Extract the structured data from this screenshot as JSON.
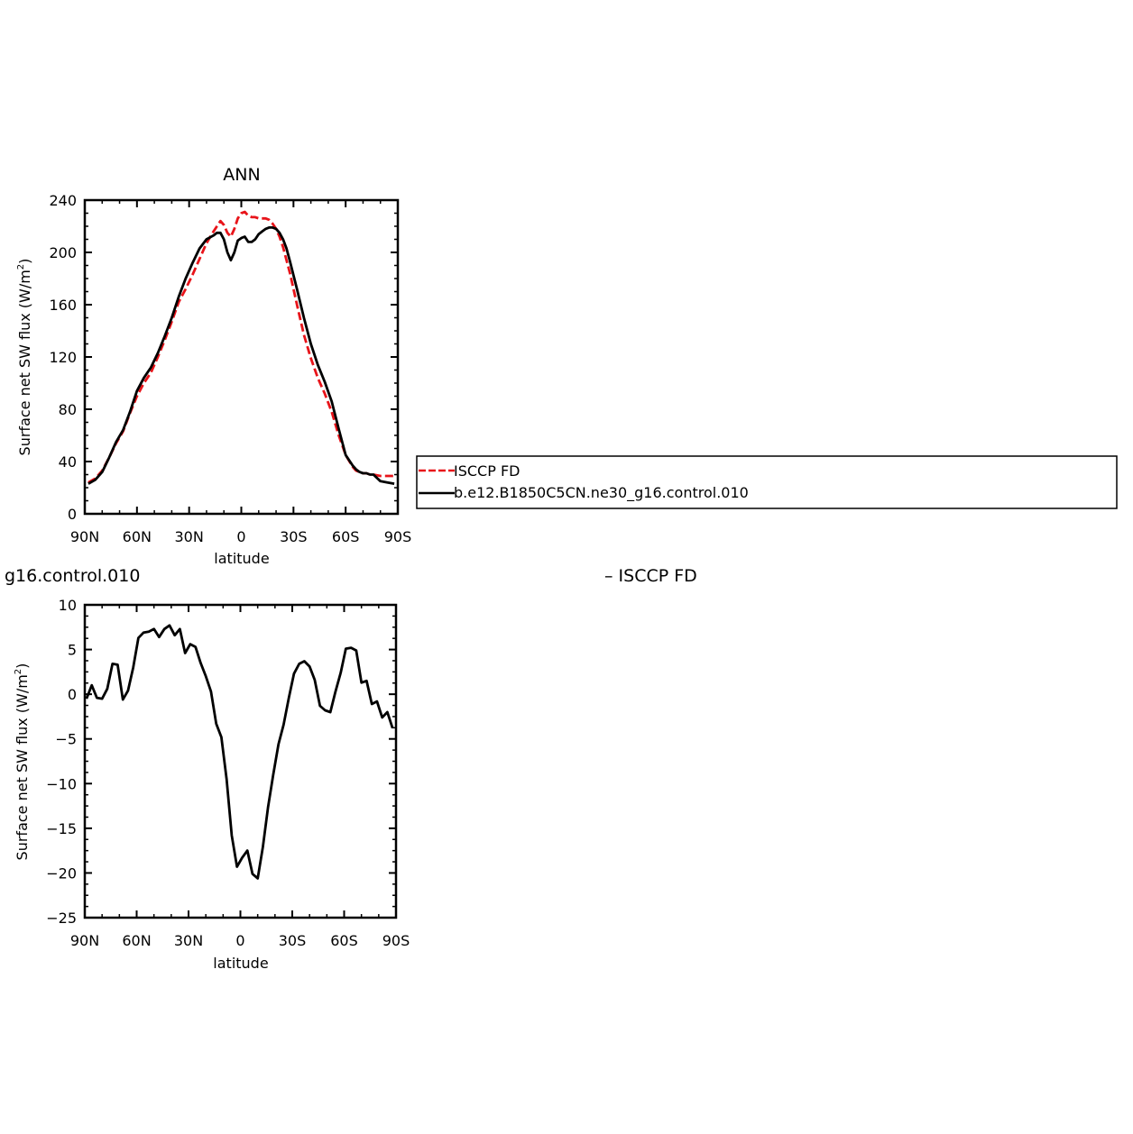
{
  "chart_data": [
    {
      "type": "line",
      "title": "ANN",
      "xlabel": "latitude",
      "ylabel": "Surface net SW flux (W/m",
      "ylabel_sup": "2",
      "ylabel_end": ")",
      "xlim": [
        -90,
        90
      ],
      "ylim": [
        0,
        240
      ],
      "xticks": [
        -90,
        -60,
        -30,
        0,
        30,
        60,
        90
      ],
      "xtick_labels": [
        "90N",
        "60N",
        "30N",
        "0",
        "30S",
        "60S",
        "90S"
      ],
      "yticks": [
        0,
        40,
        80,
        120,
        160,
        200,
        240
      ],
      "ytick_labels": [
        "0",
        "40",
        "80",
        "120",
        "160",
        "200",
        "240"
      ],
      "grid": false,
      "legend_position": "right",
      "series": [
        {
          "name": "ISCCP FD",
          "color": "#e8141a",
          "style": "dashed",
          "x": [
            -88,
            -84,
            -80,
            -76,
            -72,
            -68,
            -64,
            -60,
            -56,
            -52,
            -48,
            -44,
            -40,
            -36,
            -32,
            -28,
            -24,
            -20,
            -16,
            -14,
            -12,
            -10,
            -8,
            -6,
            -4,
            -2,
            0,
            2,
            4,
            6,
            8,
            10,
            12,
            14,
            16,
            18,
            20,
            22,
            24,
            26,
            28,
            32,
            36,
            40,
            44,
            48,
            52,
            56,
            60,
            64,
            66,
            68,
            70,
            72,
            74,
            76,
            80,
            84,
            88
          ],
          "y": [
            24,
            27,
            33,
            43,
            54,
            63,
            77,
            90,
            100,
            108,
            120,
            133,
            147,
            162,
            172,
            183,
            195,
            207,
            216,
            220,
            224,
            221,
            215,
            212,
            218,
            226,
            230,
            231,
            228,
            227,
            227,
            226,
            226,
            226,
            225,
            222,
            218,
            212,
            204,
            194,
            184,
            160,
            137,
            119,
            104,
            92,
            78,
            60,
            45,
            36,
            33,
            32,
            31,
            31,
            30,
            30,
            29,
            29,
            29
          ]
        },
        {
          "name": "b.e12.B1850C5CN.ne30_g16.control.010",
          "color": "#000000",
          "style": "solid",
          "x": [
            -88,
            -84,
            -80,
            -76,
            -72,
            -68,
            -64,
            -60,
            -56,
            -52,
            -48,
            -44,
            -40,
            -36,
            -32,
            -28,
            -24,
            -20,
            -16,
            -14,
            -12,
            -10,
            -8,
            -6,
            -4,
            -2,
            0,
            2,
            4,
            6,
            8,
            10,
            12,
            14,
            16,
            18,
            20,
            22,
            24,
            26,
            28,
            32,
            36,
            40,
            44,
            48,
            52,
            56,
            60,
            64,
            66,
            68,
            70,
            72,
            74,
            76,
            80,
            84,
            88
          ],
          "y": [
            23,
            26,
            32,
            43,
            55,
            64,
            78,
            94,
            104,
            112,
            123,
            136,
            150,
            166,
            180,
            192,
            203,
            210,
            213,
            215,
            215,
            210,
            200,
            194,
            200,
            209,
            211,
            212,
            208,
            208,
            210,
            214,
            216,
            218,
            219,
            219,
            218,
            215,
            210,
            203,
            193,
            172,
            150,
            130,
            114,
            101,
            86,
            65,
            45,
            37,
            34,
            32,
            31,
            31,
            30,
            30,
            25,
            24,
            23
          ]
        }
      ]
    },
    {
      "type": "line",
      "title_fragment": "g16.control.010",
      "title_fragment_right": "– ISCCP FD",
      "xlabel": "latitude",
      "ylabel": "Surface net SW flux (W/m",
      "ylabel_sup": "2",
      "ylabel_end": ")",
      "xlim": [
        -90,
        90
      ],
      "ylim": [
        -25,
        10
      ],
      "xticks": [
        -90,
        -60,
        -30,
        0,
        30,
        60,
        90
      ],
      "xtick_labels": [
        "90N",
        "60N",
        "30N",
        "0",
        "30S",
        "60S",
        "90S"
      ],
      "yticks": [
        -25,
        -20,
        -15,
        -10,
        -5,
        0,
        5,
        10
      ],
      "ytick_labels": [
        "−25",
        "−20",
        "−15",
        "−10",
        "−5",
        "0",
        "5",
        "10"
      ],
      "grid": false,
      "series": [
        {
          "color": "#000000",
          "style": "solid",
          "x": [
            -89,
            -86,
            -83,
            -80,
            -77,
            -74,
            -71,
            -68,
            -65,
            -62,
            -59,
            -56,
            -53,
            -50,
            -47,
            -44,
            -41,
            -38,
            -35,
            -32,
            -29,
            -26,
            -23,
            -20,
            -17,
            -14,
            -11,
            -8,
            -5,
            -2,
            1,
            4,
            7,
            10,
            13,
            16,
            19,
            22,
            25,
            28,
            31,
            34,
            37,
            40,
            43,
            46,
            49,
            52,
            55,
            58,
            61,
            64,
            67,
            70,
            73,
            76,
            79,
            82,
            85,
            88
          ],
          "y": [
            -0.5,
            1.0,
            -0.4,
            -0.5,
            0.6,
            3.4,
            3.3,
            -0.6,
            0.4,
            3.0,
            6.3,
            6.9,
            7.0,
            7.3,
            6.4,
            7.3,
            7.7,
            6.6,
            7.3,
            4.6,
            5.6,
            5.3,
            3.5,
            2.0,
            0.3,
            -3.3,
            -4.8,
            -9.5,
            -15.8,
            -19.3,
            -18.3,
            -17.5,
            -20.1,
            -20.6,
            -17.1,
            -12.6,
            -9.0,
            -5.6,
            -3.4,
            -0.4,
            2.3,
            3.4,
            3.7,
            3.1,
            1.6,
            -1.3,
            -1.8,
            -2.0,
            0.3,
            2.4,
            5.1,
            5.2,
            4.9,
            1.3,
            1.5,
            -1.1,
            -0.8,
            -2.6,
            -2.0,
            -3.8
          ]
        }
      ]
    }
  ],
  "legend": {
    "items": [
      {
        "label": "ISCCP FD"
      },
      {
        "label": "b.e12.B1850C5CN.ne30_g16.control.010"
      }
    ]
  }
}
